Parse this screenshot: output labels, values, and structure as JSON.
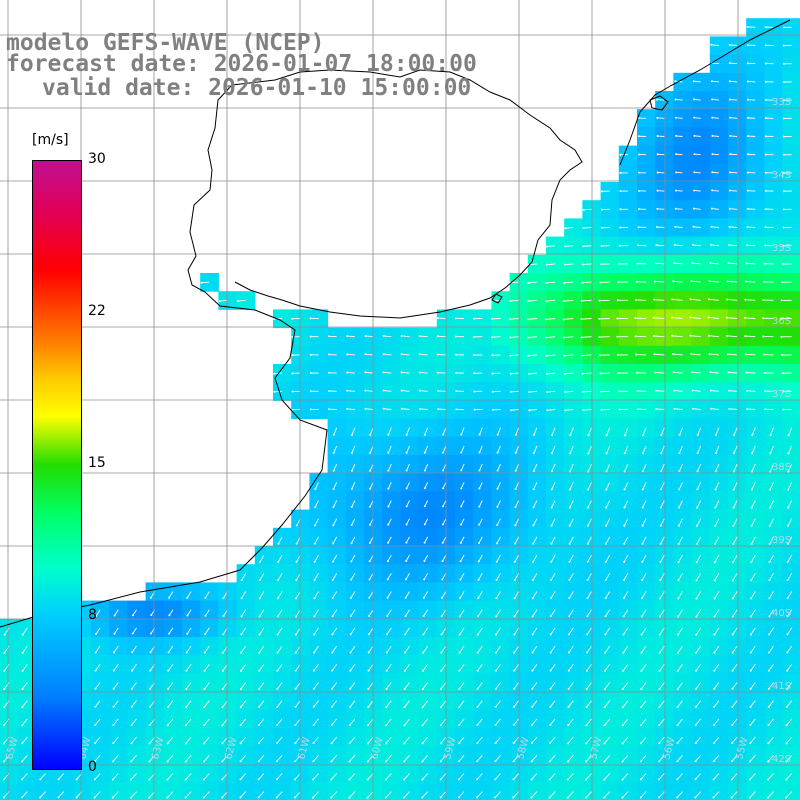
{
  "title": {
    "line1": "modelo GEFS-WAVE (NCEP)",
    "line2": "forecast date: 2026-01-07 18:00:00",
    "line3": "valid date: 2026-01-10 15:00:00"
  },
  "colorbar": {
    "unit": "[m/s]",
    "ticks": [
      "30",
      "22",
      "15",
      "8",
      "0"
    ],
    "range": [
      0,
      30
    ]
  },
  "lat_labels": [
    "33S",
    "34S",
    "35S",
    "36S",
    "37S",
    "38S",
    "39S",
    "40S",
    "41S",
    "42S",
    "43S"
  ],
  "lon_labels": [
    "65W",
    "64W",
    "63W",
    "62W",
    "61W",
    "60W",
    "59W",
    "58W",
    "57W",
    "56W",
    "55W"
  ],
  "colors": {
    "land": "#ffffff",
    "coast": "#000000",
    "grid": "#8c8c8c",
    "arrows": "#ffffff",
    "title": "#808080"
  }
}
